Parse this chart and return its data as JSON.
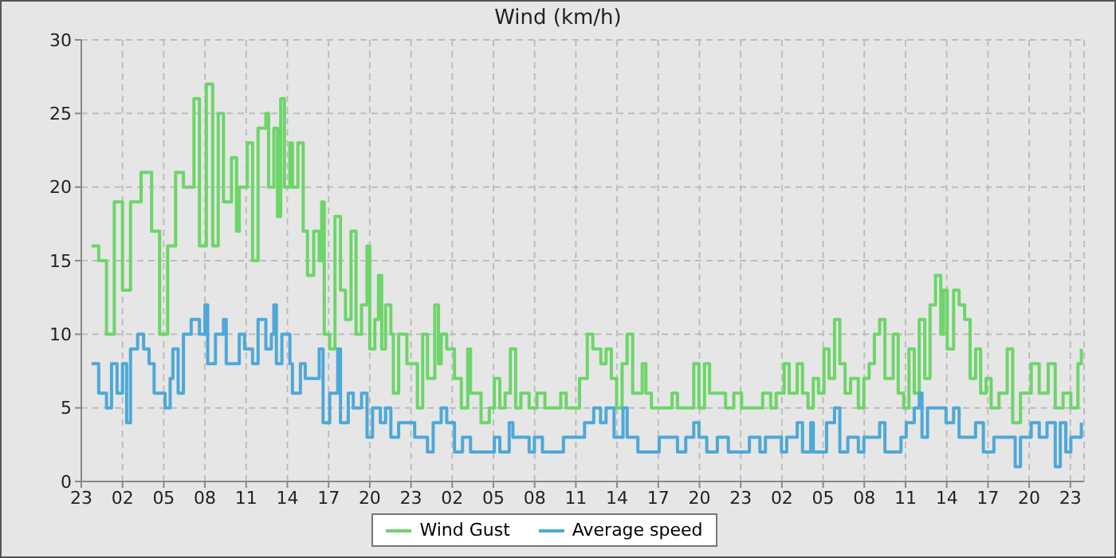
{
  "chart_data": {
    "type": "step",
    "title": "Wind (km/h)",
    "xlim": [
      "--01-01T23:00",
      "--01-05T00:00"
    ],
    "xticks": [
      {
        "value": "--01-01T23:00",
        "label": "23"
      },
      {
        "value": "--01-02T02:00",
        "label": "02"
      },
      {
        "value": "--01-02T05:00",
        "label": "05"
      },
      {
        "value": "--01-02T08:00",
        "label": "08"
      },
      {
        "value": "--01-02T11:00",
        "label": "11"
      },
      {
        "value": "--01-02T14:00",
        "label": "14"
      },
      {
        "value": "--01-02T17:00",
        "label": "17"
      },
      {
        "value": "--01-02T20:00",
        "label": "20"
      },
      {
        "value": "--01-02T23:00",
        "label": "23"
      },
      {
        "value": "--01-03T02:00",
        "label": "02"
      },
      {
        "value": "--01-03T05:00",
        "label": "05"
      },
      {
        "value": "--01-03T08:00",
        "label": "08"
      },
      {
        "value": "--01-03T11:00",
        "label": "11"
      },
      {
        "value": "--01-03T14:00",
        "label": "14"
      },
      {
        "value": "--01-03T17:00",
        "label": "17"
      },
      {
        "value": "--01-03T20:00",
        "label": "20"
      },
      {
        "value": "--01-03T23:00",
        "label": "23"
      },
      {
        "value": "--01-04T02:00",
        "label": "02"
      },
      {
        "value": "--01-04T05:00",
        "label": "05"
      },
      {
        "value": "--01-04T08:00",
        "label": "08"
      },
      {
        "value": "--01-04T11:00",
        "label": "11"
      },
      {
        "value": "--01-04T14:00",
        "label": "14"
      },
      {
        "value": "--01-04T17:00",
        "label": "17"
      },
      {
        "value": "--01-04T20:00",
        "label": "20"
      },
      {
        "value": "--01-04T23:00",
        "label": "23"
      }
    ],
    "ylim": [
      0,
      30
    ],
    "yticks": [
      0,
      5,
      10,
      15,
      20,
      25,
      30
    ],
    "grid": true,
    "legend": "bottom",
    "line_style": "solid",
    "marker": "none",
    "series": [
      {
        "name": "Wind Gust",
        "color": "#6dd56a",
        "x": [
          "--01-01T23:45",
          "--01-02T00:16",
          "--01-02T00:50",
          "--01-02T01:24",
          "--01-02T02:00",
          "--01-02T02:35",
          "--01-02T03:21",
          "--01-02T04:07",
          "--01-02T04:42",
          "--01-02T05:17",
          "--01-02T05:52",
          "--01-02T06:26",
          "--01-02T07:12",
          "--01-02T07:36",
          "--01-02T08:06",
          "--01-02T08:34",
          "--01-02T08:58",
          "--01-02T09:21",
          "--01-02T09:56",
          "--01-02T10:18",
          "--01-02T10:30",
          "--01-02T11:05",
          "--01-02T11:28",
          "--01-02T11:52",
          "--01-02T12:26",
          "--01-02T12:38",
          "--01-02T13:01",
          "--01-02T13:17",
          "--01-02T13:31",
          "--01-02T13:47",
          "--01-02T14:11",
          "--01-02T14:22",
          "--01-02T14:46",
          "--01-02T15:09",
          "--01-02T15:28",
          "--01-02T15:55",
          "--01-02T16:19",
          "--01-02T16:30",
          "--01-02T16:41",
          "--01-02T17:05",
          "--01-02T17:28",
          "--01-02T17:52",
          "--01-02T18:14",
          "--01-02T18:38",
          "--01-02T19:00",
          "--01-02T19:24",
          "--01-02T19:48",
          "--01-02T20:00",
          "--01-02T20:22",
          "--01-02T20:38",
          "--01-02T20:52",
          "--01-02T21:09",
          "--01-02T21:32",
          "--01-02T21:43",
          "--01-02T22:06",
          "--01-02T22:42",
          "--01-02T23:16",
          "--01-02T23:28",
          "--01-02T23:51",
          "--01-03T00:12",
          "--01-03T00:44",
          "--01-03T01:00",
          "--01-03T01:12",
          "--01-03T01:36",
          "--01-03T02:10",
          "--01-03T02:40",
          "--01-03T03:08",
          "--01-03T03:20",
          "--01-03T04:06",
          "--01-03T04:42",
          "--01-03T05:04",
          "--01-03T05:28",
          "--01-03T05:51",
          "--01-03T06:14",
          "--01-03T06:37",
          "--01-03T07:00",
          "--01-03T07:36",
          "--01-03T08:10",
          "--01-03T08:45",
          "--01-03T09:54",
          "--01-03T10:18",
          "--01-03T11:16",
          "--01-03T11:50",
          "--01-03T12:14",
          "--01-03T12:49",
          "--01-03T13:12",
          "--01-03T13:35",
          "--01-03T13:58",
          "--01-03T14:22",
          "--01-03T14:44",
          "--01-03T15:08",
          "--01-03T15:50",
          "--01-03T16:06",
          "--01-03T16:30",
          "--01-03T17:28",
          "--01-03T18:00",
          "--01-03T18:24",
          "--01-03T19:00",
          "--01-03T19:35",
          "--01-03T19:58",
          "--01-03T20:22",
          "--01-03T20:44",
          "--01-03T21:54",
          "--01-03T22:30",
          "--01-03T23:04",
          "--01-04T00:36",
          "--01-04T01:11",
          "--01-04T01:35",
          "--01-04T02:10",
          "--01-04T02:32",
          "--01-04T03:07",
          "--01-04T03:30",
          "--01-04T03:54",
          "--01-04T04:17",
          "--01-04T04:40",
          "--01-04T05:04",
          "--01-04T05:26",
          "--01-04T05:50",
          "--01-04T06:13",
          "--01-04T06:36",
          "--01-04T07:00",
          "--01-04T07:34",
          "--01-04T07:58",
          "--01-04T08:21",
          "--01-04T08:44",
          "--01-04T09:07",
          "--01-04T09:30",
          "--01-04T10:06",
          "--01-04T10:28",
          "--01-04T10:52",
          "--01-04T11:15",
          "--01-04T11:38",
          "--01-04T12:00",
          "--01-04T12:24",
          "--01-04T12:47",
          "--01-04T13:11",
          "--01-04T13:34",
          "--01-04T13:46",
          "--01-04T14:02",
          "--01-04T14:30",
          "--01-04T14:54",
          "--01-04T15:18",
          "--01-04T15:42",
          "--01-04T16:06",
          "--01-04T16:28",
          "--01-04T16:52",
          "--01-04T17:14",
          "--01-04T17:48",
          "--01-04T18:24",
          "--01-04T18:48",
          "--01-04T19:22",
          "--01-04T20:09",
          "--01-04T20:44",
          "--01-04T21:23",
          "--01-04T21:54",
          "--01-04T22:28",
          "--01-04T23:02",
          "--01-04T23:33",
          "--01-04T23:48"
        ],
        "values": [
          16,
          15,
          10,
          19,
          13,
          19,
          21,
          17,
          10,
          16,
          21,
          20,
          26,
          16,
          27,
          16,
          25,
          19,
          22,
          17,
          20,
          23,
          15,
          24,
          25,
          20,
          24,
          18,
          26,
          20,
          23,
          20,
          23,
          17,
          14,
          17,
          15,
          19,
          10,
          9,
          18,
          13,
          11,
          17,
          10,
          12,
          16,
          9,
          11,
          14,
          9,
          12,
          10,
          6,
          10,
          8,
          8,
          5,
          10,
          7,
          12,
          8,
          10,
          9,
          7,
          5,
          9,
          6,
          4,
          5,
          7,
          5,
          6,
          9,
          5,
          6,
          5,
          6,
          5,
          6,
          5,
          7,
          10,
          9,
          8,
          9,
          7,
          5,
          8,
          10,
          6,
          8,
          6,
          5,
          5,
          6,
          5,
          5,
          8,
          5,
          8,
          6,
          5,
          6,
          5,
          6,
          5,
          6,
          8,
          6,
          8,
          6,
          5,
          7,
          6,
          9,
          7,
          11,
          8,
          6,
          7,
          5,
          7,
          8,
          10,
          11,
          7,
          10,
          6,
          5,
          9,
          6,
          11,
          7,
          12,
          14,
          10,
          13,
          9,
          13,
          12,
          11,
          7,
          9,
          6,
          7,
          5,
          6,
          9,
          4,
          6,
          8,
          6,
          8,
          5,
          6,
          5,
          8,
          9
        ]
      },
      {
        "name": "Average speed",
        "color": "#4ea8d8",
        "x": [
          "--01-01T23:45",
          "--01-02T00:16",
          "--01-02T00:50",
          "--01-02T01:12",
          "--01-02T01:36",
          "--01-02T02:00",
          "--01-02T02:18",
          "--01-02T02:35",
          "--01-02T03:06",
          "--01-02T03:32",
          "--01-02T03:56",
          "--01-02T04:18",
          "--01-02T05:06",
          "--01-02T05:28",
          "--01-02T05:40",
          "--01-02T06:03",
          "--01-02T06:26",
          "--01-02T07:00",
          "--01-02T07:36",
          "--01-02T08:00",
          "--01-02T08:12",
          "--01-02T08:46",
          "--01-02T09:21",
          "--01-02T09:33",
          "--01-02T09:56",
          "--01-02T10:30",
          "--01-02T10:53",
          "--01-02T11:28",
          "--01-02T11:52",
          "--01-02T12:26",
          "--01-02T12:50",
          "--01-02T13:01",
          "--01-02T13:12",
          "--01-02T13:36",
          "--01-02T14:11",
          "--01-02T14:22",
          "--01-02T14:57",
          "--01-02T15:18",
          "--01-02T16:19",
          "--01-02T16:36",
          "--01-02T17:05",
          "--01-02T17:40",
          "--01-02T17:52",
          "--01-02T18:26",
          "--01-02T18:48",
          "--01-02T19:24",
          "--01-02T19:48",
          "--01-02T20:12",
          "--01-02T20:46",
          "--01-02T21:09",
          "--01-02T21:32",
          "--01-02T22:06",
          "--01-02T23:16",
          "--01-03T00:12",
          "--01-03T00:37",
          "--01-03T01:12",
          "--01-03T01:36",
          "--01-03T02:10",
          "--01-03T02:45",
          "--01-03T03:20",
          "--01-03T05:04",
          "--01-03T05:28",
          "--01-03T06:09",
          "--01-03T06:25",
          "--01-03T07:36",
          "--01-03T07:59",
          "--01-03T08:34",
          "--01-03T10:06",
          "--01-03T11:38",
          "--01-03T12:18",
          "--01-03T12:48",
          "--01-03T13:12",
          "--01-03T13:47",
          "--01-03T14:26",
          "--01-03T14:44",
          "--01-03T15:31",
          "--01-03T17:04",
          "--01-03T18:24",
          "--01-03T19:00",
          "--01-03T19:35",
          "--01-03T19:58",
          "--01-03T20:32",
          "--01-03T21:18",
          "--01-03T22:06",
          "--01-03T23:38",
          "--01-04T00:24",
          "--01-04T00:48",
          "--01-04T01:58",
          "--01-04T02:21",
          "--01-04T03:07",
          "--01-04T03:30",
          "--01-04T04:06",
          "--01-04T04:17",
          "--01-04T05:15",
          "--01-04T05:50",
          "--01-04T06:13",
          "--01-04T06:48",
          "--01-04T07:34",
          "--01-04T07:58",
          "--01-04T09:07",
          "--01-04T09:30",
          "--01-04T10:40",
          "--01-04T11:03",
          "--01-04T11:38",
          "--01-04T12:00",
          "--01-04T12:12",
          "--01-04T12:36",
          "--01-04T13:57",
          "--01-04T14:30",
          "--01-04T14:54",
          "--01-04T16:06",
          "--01-04T16:40",
          "--01-04T17:26",
          "--01-04T18:59",
          "--01-04T19:22",
          "--01-04T20:09",
          "--01-04T20:44",
          "--01-04T21:18",
          "--01-04T21:54",
          "--01-04T22:16",
          "--01-04T22:40",
          "--01-04T23:02",
          "--01-04T23:48"
        ],
        "values": [
          8,
          6,
          5,
          8,
          6,
          8,
          4,
          9,
          10,
          9,
          8,
          6,
          5,
          7,
          9,
          6,
          10,
          11,
          10,
          12,
          8,
          10,
          11,
          8,
          8,
          10,
          9,
          8,
          11,
          9,
          10,
          12,
          8,
          10,
          8,
          6,
          8,
          7,
          9,
          4,
          6,
          9,
          4,
          6,
          5,
          6,
          3,
          5,
          4,
          5,
          3,
          4,
          3,
          2,
          4,
          5,
          4,
          2,
          3,
          2,
          3,
          2,
          4,
          3,
          2,
          3,
          2,
          3,
          4,
          5,
          4,
          5,
          3,
          5,
          3,
          2,
          3,
          2,
          3,
          4,
          3,
          2,
          3,
          2,
          3,
          2,
          3,
          2,
          3,
          4,
          2,
          4,
          2,
          4,
          5,
          2,
          3,
          2,
          3,
          4,
          2,
          3,
          4,
          5,
          6,
          3,
          5,
          4,
          5,
          3,
          4,
          2,
          3,
          1,
          3,
          4,
          3,
          4,
          1,
          4,
          2,
          3,
          4
        ]
      }
    ]
  }
}
